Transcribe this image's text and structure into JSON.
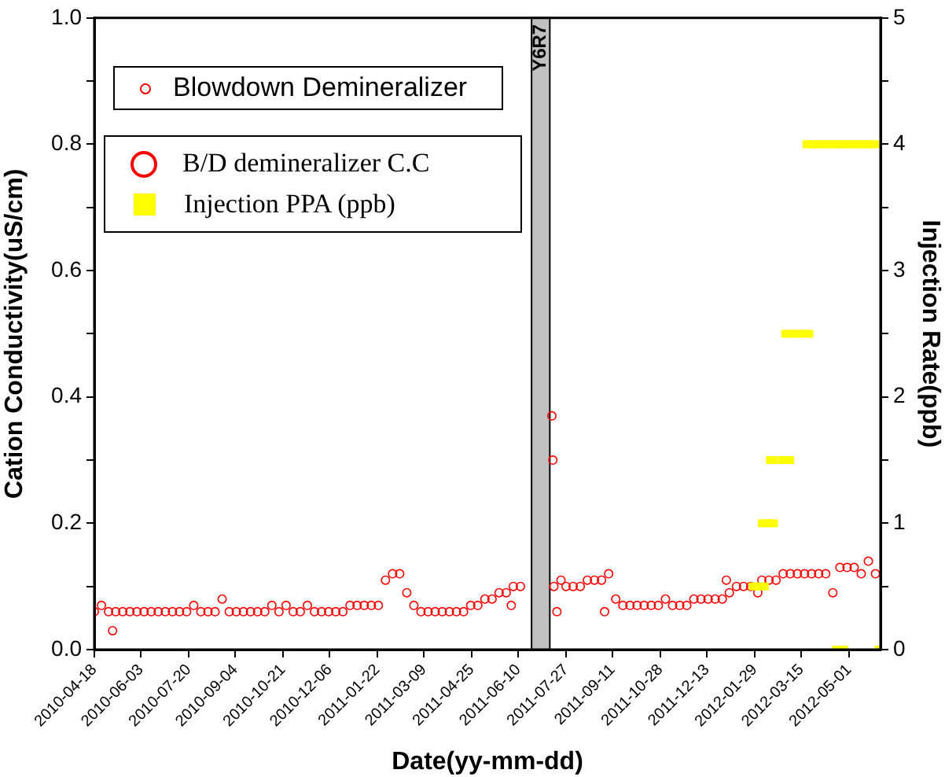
{
  "chart_data": {
    "type": "scatter",
    "xlabel": "Date(yy-mm-dd)",
    "ylabel": "Cation Conductivity(uS/cm)",
    "y2label": "Injection Rate(ppb)",
    "legend_title": "Blowdown Demineralizer",
    "legend": "top left",
    "grid": false,
    "marker": "circle",
    "xlim": [
      "2010-04-18",
      "2012-06-01"
    ],
    "xticks": [
      "2010-04-18",
      "2010-06-03",
      "2010-07-20",
      "2010-09-04",
      "2010-10-21",
      "2010-12-06",
      "2011-01-22",
      "2011-03-09",
      "2011-04-25",
      "2011-06-10",
      "2011-07-27",
      "2011-09-11",
      "2011-10-28",
      "2011-12-13",
      "2012-01-29",
      "2012-03-15",
      "2012-05-01"
    ],
    "ylim": [
      0,
      1
    ],
    "yticks": [
      {
        "value": 0,
        "label": "0.0"
      },
      {
        "value": 0.1,
        "label": null
      },
      {
        "value": 0.2,
        "label": "0.2"
      },
      {
        "value": 0.3,
        "label": null
      },
      {
        "value": 0.4,
        "label": "0.4"
      },
      {
        "value": 0.5,
        "label": null
      },
      {
        "value": 0.6,
        "label": "0.6"
      },
      {
        "value": 0.7,
        "label": null
      },
      {
        "value": 0.8,
        "label": "0.8"
      },
      {
        "value": 0.9,
        "label": null
      },
      {
        "value": 1,
        "label": "1.0"
      }
    ],
    "y2lim": [
      0,
      5
    ],
    "y2ticks": [
      0,
      {
        "value": 0.5,
        "label": null
      },
      1,
      {
        "value": 1.5,
        "label": null
      },
      2,
      {
        "value": 2.5,
        "label": null
      },
      3,
      {
        "value": 3.5,
        "label": null
      },
      4,
      {
        "value": 4.5,
        "label": null
      },
      5
    ],
    "bands": [
      {
        "axis": "x",
        "from": "2011-06-23",
        "to": "2011-07-11",
        "label": "Y6R7",
        "color": "#c0c0c0"
      }
    ],
    "series": [
      {
        "name": "B/D demineralizer C.C",
        "color": "#ff0000",
        "x": [
          "2010-04-18",
          "2010-04-25",
          "2010-05-02",
          "2010-05-06",
          "2010-05-09",
          "2010-05-16",
          "2010-05-23",
          "2010-05-30",
          "2010-06-06",
          "2010-06-13",
          "2010-06-20",
          "2010-06-27",
          "2010-07-04",
          "2010-07-11",
          "2010-07-18",
          "2010-07-25",
          "2010-08-01",
          "2010-08-08",
          "2010-08-15",
          "2010-08-22",
          "2010-08-29",
          "2010-09-05",
          "2010-09-12",
          "2010-09-19",
          "2010-09-26",
          "2010-10-03",
          "2010-10-10",
          "2010-10-17",
          "2010-10-24",
          "2010-10-31",
          "2010-11-07",
          "2010-11-14",
          "2010-11-21",
          "2010-11-28",
          "2010-12-05",
          "2010-12-12",
          "2010-12-19",
          "2010-12-26",
          "2011-01-02",
          "2011-01-09",
          "2011-01-16",
          "2011-01-23",
          "2011-01-30",
          "2011-02-06",
          "2011-02-13",
          "2011-02-20",
          "2011-02-27",
          "2011-03-06",
          "2011-03-13",
          "2011-03-20",
          "2011-03-27",
          "2011-04-03",
          "2011-04-10",
          "2011-04-17",
          "2011-04-24",
          "2011-05-01",
          "2011-05-08",
          "2011-05-15",
          "2011-05-22",
          "2011-05-29",
          "2011-06-03",
          "2011-06-05",
          "2011-06-12",
          "2011-07-13",
          "2011-07-14",
          "2011-07-15",
          "2011-07-18",
          "2011-07-22",
          "2011-07-27",
          "2011-08-03",
          "2011-08-10",
          "2011-08-17",
          "2011-08-24",
          "2011-08-31",
          "2011-09-03",
          "2011-09-07",
          "2011-09-14",
          "2011-09-21",
          "2011-09-28",
          "2011-10-05",
          "2011-10-12",
          "2011-10-19",
          "2011-10-26",
          "2011-11-02",
          "2011-11-09",
          "2011-11-16",
          "2011-11-23",
          "2011-11-30",
          "2011-12-07",
          "2011-12-14",
          "2011-12-21",
          "2011-12-28",
          "2012-01-01",
          "2012-01-04",
          "2012-01-11",
          "2012-01-18",
          "2012-01-25",
          "2012-02-01",
          "2012-02-05",
          "2012-02-12",
          "2012-02-19",
          "2012-02-26",
          "2012-03-04",
          "2012-03-11",
          "2012-03-18",
          "2012-03-25",
          "2012-04-01",
          "2012-04-08",
          "2012-04-15",
          "2012-04-22",
          "2012-04-29",
          "2012-05-06",
          "2012-05-13",
          "2012-05-20",
          "2012-05-27"
        ],
        "values": [
          0.06,
          0.07,
          0.06,
          0.03,
          0.06,
          0.06,
          0.06,
          0.06,
          0.06,
          0.06,
          0.06,
          0.06,
          0.06,
          0.06,
          0.06,
          0.07,
          0.06,
          0.06,
          0.06,
          0.08,
          0.06,
          0.06,
          0.06,
          0.06,
          0.06,
          0.06,
          0.07,
          0.06,
          0.07,
          0.06,
          0.06,
          0.07,
          0.06,
          0.06,
          0.06,
          0.06,
          0.06,
          0.07,
          0.07,
          0.07,
          0.07,
          0.07,
          0.11,
          0.12,
          0.12,
          0.09,
          0.07,
          0.06,
          0.06,
          0.06,
          0.06,
          0.06,
          0.06,
          0.06,
          0.07,
          0.07,
          0.08,
          0.08,
          0.09,
          0.09,
          0.07,
          0.1,
          0.1,
          0.37,
          0.3,
          0.1,
          0.06,
          0.11,
          0.1,
          0.1,
          0.1,
          0.11,
          0.11,
          0.11,
          0.06,
          0.12,
          0.08,
          0.07,
          0.07,
          0.07,
          0.07,
          0.07,
          0.07,
          0.08,
          0.07,
          0.07,
          0.07,
          0.08,
          0.08,
          0.08,
          0.08,
          0.08,
          0.11,
          0.09,
          0.1,
          0.1,
          0.1,
          0.09,
          0.11,
          0.11,
          0.11,
          0.12,
          0.12,
          0.12,
          0.12,
          0.12,
          0.12,
          0.12,
          0.09,
          0.13,
          0.13,
          0.13,
          0.12,
          0.14,
          0.12
        ]
      },
      {
        "name": "Injection PPA (ppb)",
        "color": "#ffff00",
        "marker": "square",
        "axis": "y2",
        "x": [
          "2012-01-27",
          "2012-01-31",
          "2012-02-04",
          "2012-02-08",
          "2012-02-05",
          "2012-02-09",
          "2012-02-13",
          "2012-02-17",
          "2012-02-13",
          "2012-02-17",
          "2012-02-25",
          "2012-02-29",
          "2012-03-04",
          "2012-02-28",
          "2012-03-03",
          "2012-03-07",
          "2012-03-11",
          "2012-03-15",
          "2012-03-19",
          "2012-03-23",
          "2012-03-20",
          "2012-03-24",
          "2012-03-28",
          "2012-04-01",
          "2012-04-05",
          "2012-04-09",
          "2012-04-13",
          "2012-04-17",
          "2012-04-21",
          "2012-04-25",
          "2012-04-29",
          "2012-05-03",
          "2012-05-07",
          "2012-05-11",
          "2012-05-15",
          "2012-05-19",
          "2012-05-23",
          "2012-05-27",
          "2012-04-18",
          "2012-04-22",
          "2012-04-26",
          "2012-05-30"
        ],
        "values": [
          0.5,
          0.5,
          0.5,
          0.5,
          1,
          1,
          1,
          1,
          1.5,
          1.5,
          1.5,
          1.5,
          1.5,
          2.5,
          2.5,
          2.5,
          2.5,
          2.5,
          2.5,
          2.5,
          4,
          4,
          4,
          4,
          4,
          4,
          4,
          4,
          4,
          4,
          4,
          4,
          4,
          4,
          4,
          4,
          4,
          4,
          0,
          0,
          0,
          0
        ]
      }
    ]
  }
}
